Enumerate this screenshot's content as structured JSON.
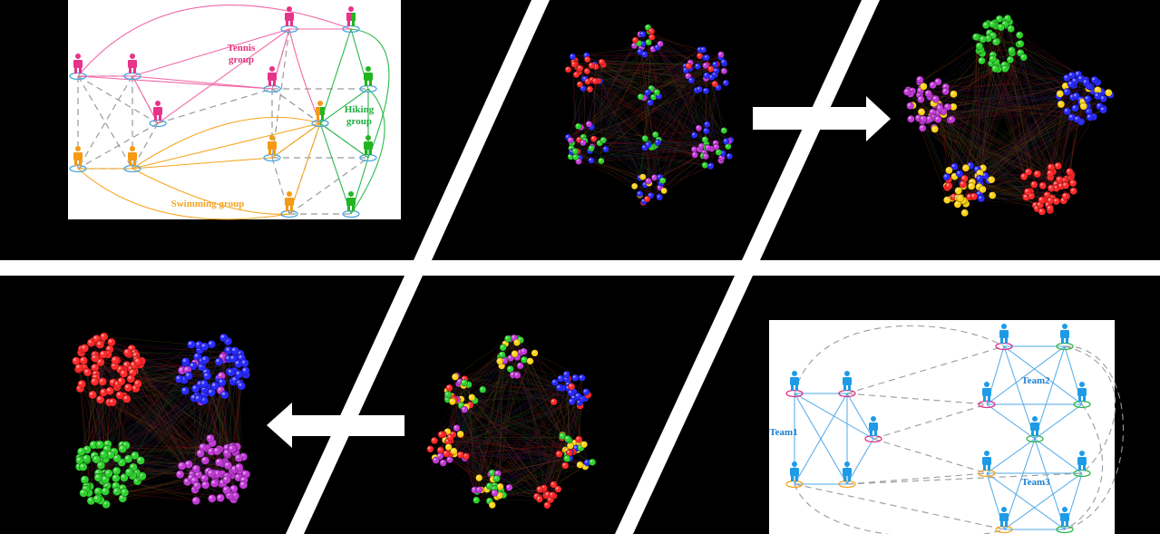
{
  "colors": {
    "background": "#000000",
    "divider": "#ffffff",
    "tennis": "#f06aa8",
    "tennis_person": "#e8338a",
    "hiking": "#2db84a",
    "hiking_person": "#22b522",
    "swimming": "#f5a623",
    "swimming_person": "#f59a12",
    "team_line": "#4fa9e8",
    "team_person": "#1e9be6",
    "dashed": "#9a9a9a",
    "node_red": "#ff2a2a",
    "node_blue": "#2a2aff",
    "node_green": "#2ed12e",
    "node_purple": "#c23ad6",
    "node_yellow": "#ffd21a"
  },
  "panels": {
    "interest_groups": {
      "tennis_label": "Tennis",
      "tennis_sub": "group",
      "hiking_label": "Hiking",
      "hiking_sub": "group",
      "swimming_label": "Swimming group"
    },
    "teams": {
      "team1": "Team1",
      "team2": "Team2",
      "team3": "Team3"
    },
    "arrows": {
      "top_direction": "right",
      "bottom_direction": "left"
    }
  }
}
